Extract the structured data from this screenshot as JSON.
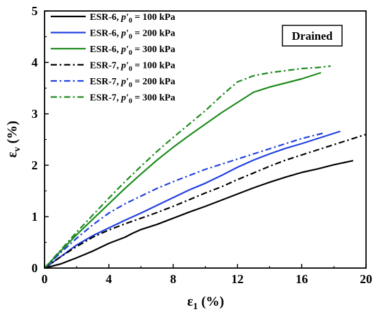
{
  "chart_data": {
    "type": "line",
    "title": "",
    "xlabel": "ε1 (%)",
    "xlabel_symbol": "ε",
    "xlabel_sub": "1",
    "xlabel_unit": " (%)",
    "ylabel": "εv (%)",
    "ylabel_symbol": "ε",
    "ylabel_sub": "v",
    "ylabel_unit": " (%)",
    "xlim": [
      0,
      20
    ],
    "ylim": [
      0,
      5
    ],
    "xticks": [
      0,
      4,
      8,
      12,
      16,
      20
    ],
    "yticks": [
      0,
      1,
      2,
      3,
      4,
      5
    ],
    "grid": false,
    "legend_position": "top-left",
    "annotation": "Drained",
    "series": [
      {
        "name": "ESR-6, p′0 = 100 kPa",
        "label_prefix": "ESR-6, ",
        "label_var": "p′",
        "label_sub": "0",
        "label_suffix": " = 100 kPa",
        "color": "#000000",
        "dash": "solid",
        "x": [
          0,
          1,
          2,
          3,
          4,
          5,
          5.5,
          6,
          7,
          8,
          9,
          10,
          11,
          12,
          13,
          14,
          15,
          16,
          17,
          18,
          19.2
        ],
        "y": [
          0,
          0.08,
          0.2,
          0.33,
          0.48,
          0.6,
          0.68,
          0.75,
          0.85,
          0.97,
          1.09,
          1.2,
          1.32,
          1.44,
          1.56,
          1.67,
          1.77,
          1.86,
          1.93,
          2.01,
          2.09
        ]
      },
      {
        "name": "ESR-6, p′0 = 200 kPa",
        "label_prefix": "ESR-6, ",
        "label_var": "p′",
        "label_sub": "0",
        "label_suffix": " = 200 kPa",
        "color": "#1f3fe0",
        "dash": "solid",
        "x": [
          0,
          1,
          2,
          3,
          4,
          5,
          6,
          7,
          8,
          9,
          10,
          11,
          12,
          13,
          14,
          15,
          16,
          17,
          18.4
        ],
        "y": [
          0,
          0.22,
          0.45,
          0.63,
          0.78,
          0.93,
          1.07,
          1.22,
          1.37,
          1.52,
          1.65,
          1.8,
          1.96,
          2.1,
          2.22,
          2.33,
          2.42,
          2.52,
          2.66
        ]
      },
      {
        "name": "ESR-6, p′0 = 300 kPa",
        "label_prefix": "ESR-6, ",
        "label_var": "p′",
        "label_sub": "0",
        "label_suffix": " = 300 kPa",
        "color": "#1a8a1a",
        "dash": "solid",
        "x": [
          0,
          1,
          2,
          3,
          4,
          5,
          6,
          7,
          8,
          9,
          10,
          11,
          12,
          13,
          14,
          15,
          16,
          17.2
        ],
        "y": [
          0,
          0.33,
          0.65,
          0.95,
          1.25,
          1.55,
          1.83,
          2.1,
          2.35,
          2.58,
          2.8,
          3.02,
          3.22,
          3.42,
          3.52,
          3.6,
          3.68,
          3.8
        ]
      },
      {
        "name": "ESR-7, p′0 = 100 kPa",
        "label_prefix": "ESR-7, ",
        "label_var": "p′",
        "label_sub": "0",
        "label_suffix": " = 100 kPa",
        "color": "#000000",
        "dash": "dashdot",
        "x": [
          0,
          1,
          2,
          3,
          4,
          5,
          6,
          7,
          8,
          9,
          10,
          11,
          12,
          13,
          14,
          15,
          16,
          17,
          18,
          19,
          20
        ],
        "y": [
          0,
          0.22,
          0.42,
          0.6,
          0.74,
          0.86,
          0.97,
          1.08,
          1.2,
          1.33,
          1.46,
          1.58,
          1.72,
          1.85,
          1.98,
          2.1,
          2.2,
          2.3,
          2.4,
          2.5,
          2.6
        ]
      },
      {
        "name": "ESR-7, p′0 = 200 kPa",
        "label_prefix": "ESR-7, ",
        "label_var": "p′",
        "label_sub": "0",
        "label_suffix": " = 200 kPa",
        "color": "#1f3fe0",
        "dash": "dashdot",
        "x": [
          0,
          1,
          2,
          3,
          4,
          5,
          6,
          7,
          8,
          9,
          10,
          11,
          12,
          13,
          14,
          15,
          16,
          17.3
        ],
        "y": [
          0,
          0.3,
          0.58,
          0.84,
          1.07,
          1.25,
          1.4,
          1.55,
          1.68,
          1.8,
          1.92,
          2.02,
          2.12,
          2.22,
          2.32,
          2.42,
          2.52,
          2.62
        ]
      },
      {
        "name": "ESR-7, p′0 = 300 kPa",
        "label_prefix": "ESR-7, ",
        "label_var": "p′",
        "label_sub": "0",
        "label_suffix": " = 300 kPa",
        "color": "#1a8a1a",
        "dash": "dashdot",
        "x": [
          0,
          1,
          2,
          3,
          4,
          5,
          6,
          7,
          8,
          9,
          10,
          11,
          12,
          13,
          14,
          15,
          16,
          17,
          17.8
        ],
        "y": [
          0,
          0.35,
          0.7,
          1.03,
          1.36,
          1.68,
          1.98,
          2.27,
          2.54,
          2.8,
          3.06,
          3.35,
          3.62,
          3.74,
          3.8,
          3.84,
          3.88,
          3.9,
          3.93
        ]
      }
    ]
  }
}
